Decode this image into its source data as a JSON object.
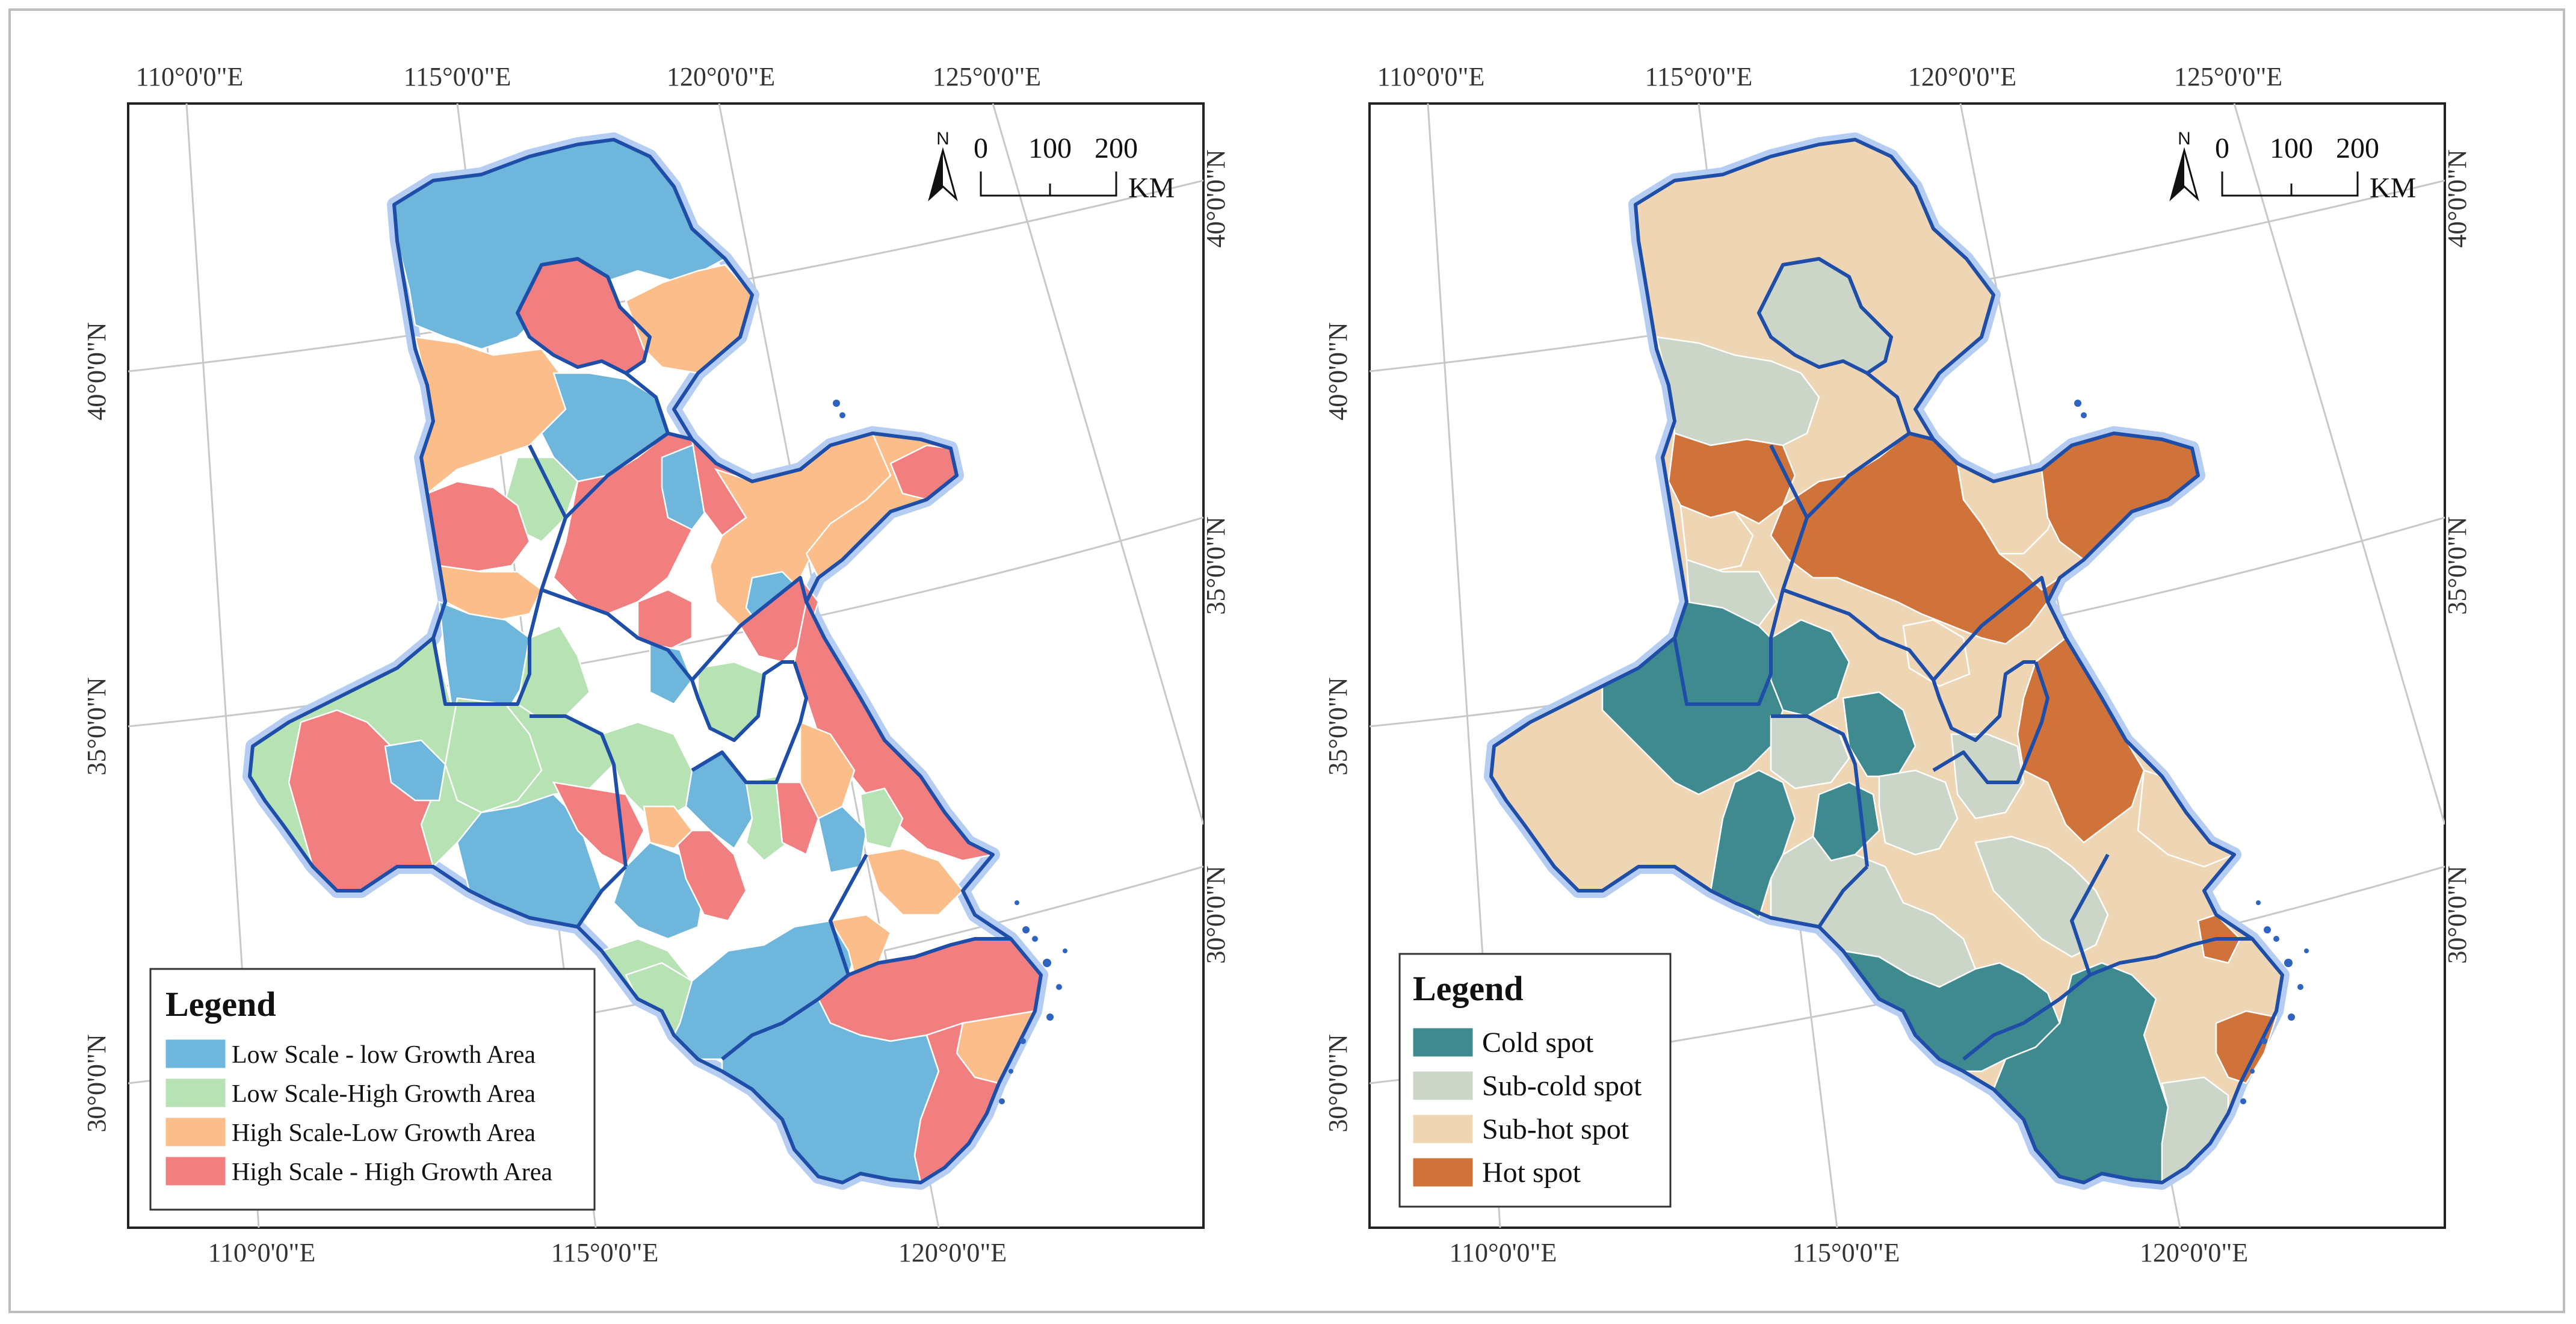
{
  "palettes": {
    "growth": [
      "#6eb6dc",
      "#b6e2b4",
      "#fbbd89",
      "#f27f80"
    ],
    "hotspot": [
      "#3f8a8f",
      "#ccd6c8",
      "#eed5b4",
      "#cf733a"
    ]
  },
  "panels": [
    {
      "id": "left",
      "palette": "growth",
      "top_axis_labels": [
        "110°0'0\"E",
        "115°0'0\"E",
        "120°0'0\"E",
        "125°0'0\"E"
      ],
      "bottom_axis_labels": [
        "110°0'0\"E",
        "115°0'0\"E",
        "120°0'0\"E"
      ],
      "left_axis_labels": [
        "40°0'0\"N",
        "35°0'0\"N",
        "30°0'0\"N"
      ],
      "right_axis_labels": [
        "40°0'0\"N",
        "35°0'0\"N",
        "30°0'0\"N"
      ],
      "legend": {
        "title": "Legend",
        "items": [
          {
            "label": "Low Scale - low Growth  Area",
            "color": "#6eb6dc"
          },
          {
            "label": "Low Scale-High Growth Area",
            "color": "#b6e2b4"
          },
          {
            "label": "High Scale-Low Growth Area",
            "color": "#fbbd89"
          },
          {
            "label": "High Scale - High Growth Area",
            "color": "#f27f80"
          }
        ]
      }
    },
    {
      "id": "right",
      "palette": "hotspot",
      "top_axis_labels": [
        "110°0'0\"E",
        "115°0'0\"E",
        "120°0'0\"E",
        "125°0'0\"E"
      ],
      "bottom_axis_labels": [
        "110°0'0\"E",
        "115°0'0\"E",
        "120°0'0\"E"
      ],
      "left_axis_labels": [
        "40°0'0\"N",
        "35°0'0\"N",
        "30°0'0\"N"
      ],
      "right_axis_labels": [
        "40°0'0\"N",
        "35°0'0\"N",
        "30°0'0\"N"
      ],
      "legend": {
        "title": "Legend",
        "items": [
          {
            "label": "Cold spot",
            "color": "#3f8a8f"
          },
          {
            "label": "Sub-cold spot",
            "color": "#ccd6c8"
          },
          {
            "label": "Sub-hot spot",
            "color": "#eed5b4"
          },
          {
            "label": "Hot spot",
            "color": "#cf733a"
          }
        ]
      }
    }
  ],
  "scale_bar": {
    "north": "N",
    "ticks": [
      "0",
      "100",
      "200"
    ],
    "unit": "KM"
  }
}
